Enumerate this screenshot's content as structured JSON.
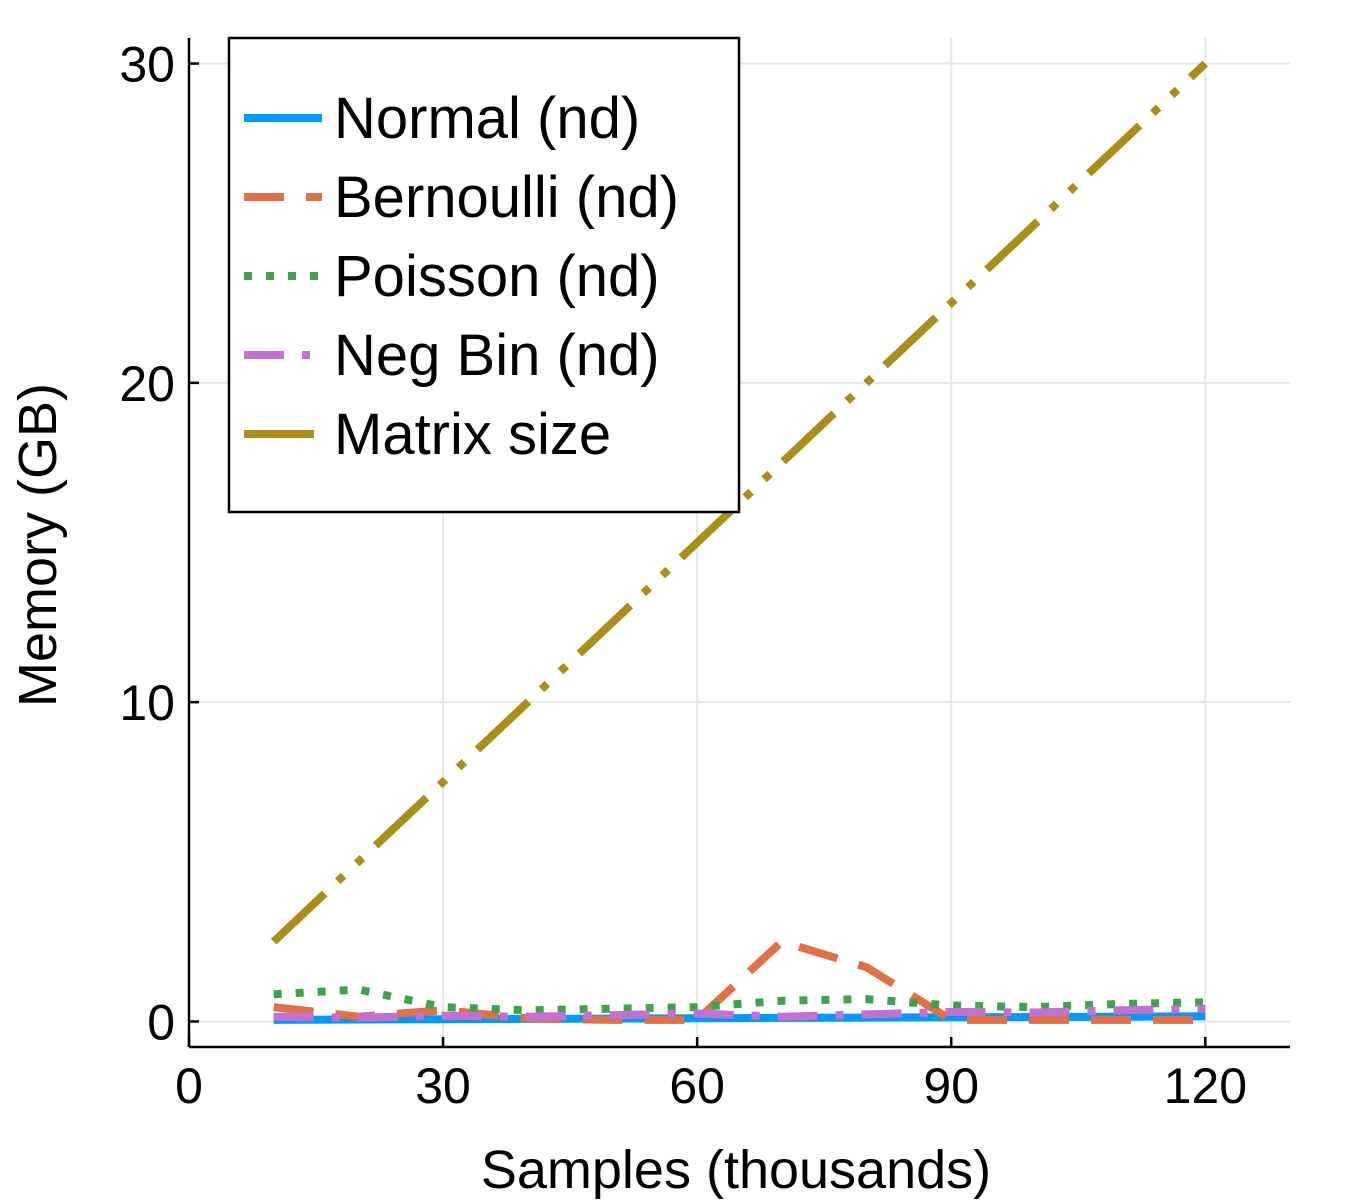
{
  "chart_data": {
    "type": "line",
    "xlabel": "Samples (thousands)",
    "ylabel": "Memory (GB)",
    "xlim": [
      0,
      130
    ],
    "ylim": [
      -0.8,
      30.8
    ],
    "xticks": [
      0,
      30,
      60,
      90,
      120
    ],
    "yticks": [
      0,
      10,
      20,
      30
    ],
    "grid": true,
    "legend_position": "top-left",
    "series": [
      {
        "name": "Normal (nd)",
        "color": "#009af9",
        "style": "solid",
        "x": [
          10,
          20,
          30,
          40,
          50,
          60,
          70,
          80,
          90,
          100,
          110,
          120
        ],
        "y": [
          0.05,
          0.06,
          0.07,
          0.08,
          0.09,
          0.1,
          0.11,
          0.12,
          0.13,
          0.14,
          0.15,
          0.16
        ]
      },
      {
        "name": "Bernoulli (nd)",
        "color": "#e26f46",
        "style": "dashed",
        "x": [
          10,
          20,
          30,
          40,
          50,
          60,
          70,
          80,
          90,
          100,
          110,
          120
        ],
        "y": [
          0.45,
          0.15,
          0.35,
          0.1,
          0.05,
          0.05,
          2.5,
          1.7,
          0.05,
          0.05,
          0.05,
          0.05
        ]
      },
      {
        "name": "Poisson (nd)",
        "color": "#3da44d",
        "style": "dotted",
        "x": [
          10,
          20,
          30,
          40,
          50,
          60,
          70,
          80,
          90,
          100,
          110,
          120
        ],
        "y": [
          0.85,
          1.0,
          0.45,
          0.35,
          0.4,
          0.45,
          0.65,
          0.7,
          0.5,
          0.45,
          0.55,
          0.6
        ]
      },
      {
        "name": "Neg Bin (nd)",
        "color": "#c271d2",
        "style": "dashdot",
        "x": [
          10,
          20,
          30,
          40,
          50,
          60,
          70,
          80,
          90,
          100,
          110,
          120
        ],
        "y": [
          0.15,
          0.12,
          0.18,
          0.15,
          0.2,
          0.25,
          0.15,
          0.22,
          0.3,
          0.28,
          0.35,
          0.4
        ]
      },
      {
        "name": "Matrix size",
        "color": "#ac8d18",
        "style": "dashdotdot",
        "x": [
          10,
          20,
          30,
          40,
          50,
          60,
          70,
          80,
          90,
          100,
          110,
          120
        ],
        "y": [
          2.5,
          5.0,
          7.5,
          10.0,
          12.5,
          15.0,
          17.5,
          20.0,
          22.5,
          25.0,
          27.5,
          30.0
        ]
      }
    ]
  }
}
